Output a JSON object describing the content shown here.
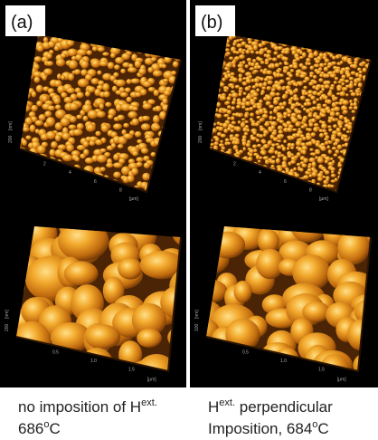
{
  "panels": [
    {
      "label": "(a)",
      "top_image": {
        "z_unit": "[nm]",
        "z_tick": "200",
        "x_ticks": [
          "2",
          "4",
          "6",
          "8"
        ],
        "x_unit": "[µm]"
      },
      "bottom_image": {
        "z_unit": "[nm]",
        "z_tick": "200",
        "x_ticks": [
          "0.5",
          "1.0",
          "1.5"
        ],
        "x_unit": "[µm]"
      },
      "caption": [
        [
          {
            "text": "no imposition of H"
          },
          {
            "text": "ext.",
            "sup": true
          }
        ],
        [
          {
            "text": "686"
          },
          {
            "text": "o",
            "sup": true
          },
          {
            "text": "C"
          }
        ]
      ]
    },
    {
      "label": "(b)",
      "top_image": {
        "z_unit": "[nm]",
        "z_tick": "200",
        "x_ticks": [
          "2",
          "4",
          "6",
          "8"
        ],
        "x_unit": "[µm]"
      },
      "bottom_image": {
        "z_unit": "[nm]",
        "z_tick": "100",
        "x_ticks": [
          "0.5",
          "1.0",
          "1.5"
        ],
        "x_unit": "[µm]"
      },
      "caption": [
        [
          {
            "text": "H"
          },
          {
            "text": "ext.",
            "sup": true
          },
          {
            "text": " perpendicular"
          }
        ],
        [
          {
            "text": "Imposition, 684"
          },
          {
            "text": "o",
            "sup": true
          },
          {
            "text": "C"
          }
        ]
      ]
    }
  ]
}
